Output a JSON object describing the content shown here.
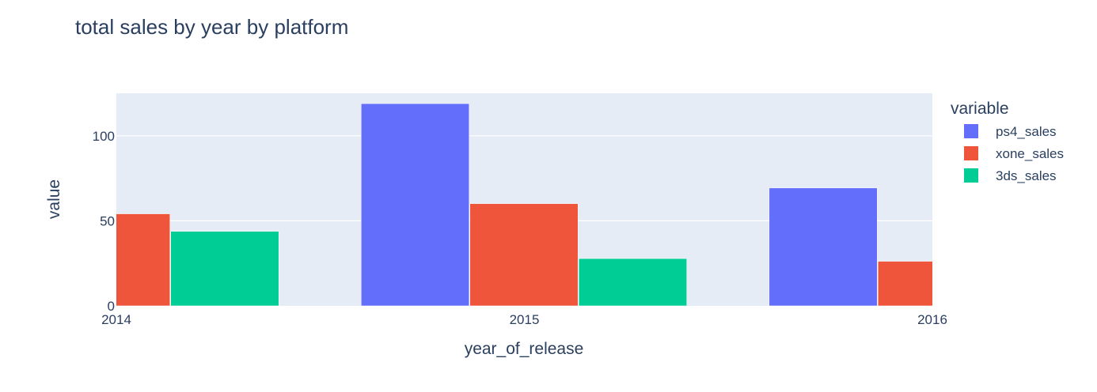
{
  "chart_data": {
    "type": "bar",
    "title": "total sales by year by platform",
    "xlabel": "year_of_release",
    "ylabel": "value",
    "x": [
      2014,
      2015,
      2016
    ],
    "x_ticks": [
      "2014",
      "2015",
      "2016"
    ],
    "xlim": [
      2014,
      2016
    ],
    "ylim": [
      0,
      125
    ],
    "y_ticks": [
      0,
      50,
      100
    ],
    "grid": true,
    "legend_title": "variable",
    "legend_position": "right",
    "series": [
      {
        "name": "ps4_sales",
        "color": "#636efa",
        "values": [
          null,
          118.9,
          69.3
        ]
      },
      {
        "name": "xone_sales",
        "color": "#ef553b",
        "values": [
          54.1,
          60.1,
          26.2
        ]
      },
      {
        "name": "3ds_sales",
        "color": "#00cc96",
        "values": [
          43.8,
          27.8,
          null
        ]
      }
    ]
  }
}
